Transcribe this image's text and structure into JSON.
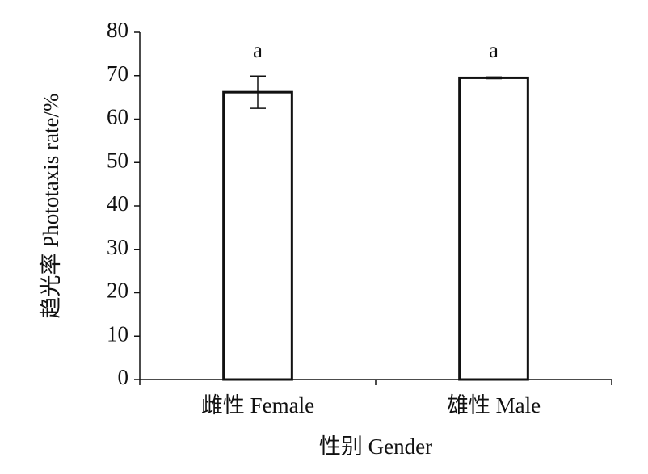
{
  "chart_data": {
    "type": "bar",
    "categories": [
      "雌性 Female",
      "雄性 Male"
    ],
    "values": [
      66.2,
      69.5
    ],
    "errors": [
      3.7,
      0.2
    ],
    "annotations": [
      "a",
      "a"
    ],
    "color": "#ffffff",
    "ylim": [
      0,
      80
    ],
    "yticks": [
      0,
      10,
      20,
      30,
      40,
      50,
      60,
      70,
      80
    ],
    "x_label": "性别 Gender",
    "y_label": "趋光率 Phototaxis rate/%"
  }
}
